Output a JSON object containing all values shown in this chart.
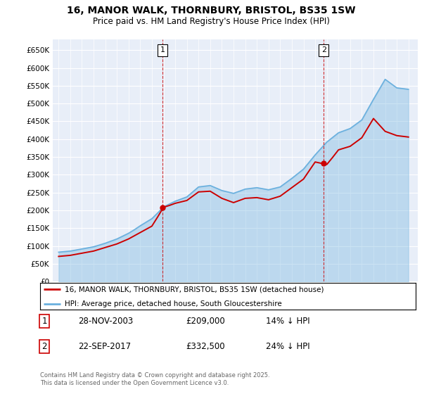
{
  "title": "16, MANOR WALK, THORNBURY, BRISTOL, BS35 1SW",
  "subtitle": "Price paid vs. HM Land Registry's House Price Index (HPI)",
  "hpi_label": "HPI: Average price, detached house, South Gloucestershire",
  "property_label": "16, MANOR WALK, THORNBURY, BRISTOL, BS35 1SW (detached house)",
  "footnote": "Contains HM Land Registry data © Crown copyright and database right 2025.\nThis data is licensed under the Open Government Licence v3.0.",
  "ylim": [
    0,
    680000
  ],
  "yticks": [
    0,
    50000,
    100000,
    150000,
    200000,
    250000,
    300000,
    350000,
    400000,
    450000,
    500000,
    550000,
    600000,
    650000
  ],
  "hpi_color": "#6ab0de",
  "property_color": "#cc0000",
  "purchase1_x": 2003.91,
  "purchase1_y": 209000,
  "purchase2_x": 2017.73,
  "purchase2_y": 332500,
  "purchase1_date": "28-NOV-2003",
  "purchase1_price": "£209,000",
  "purchase1_hpi": "14% ↓ HPI",
  "purchase2_date": "22-SEP-2017",
  "purchase2_price": "£332,500",
  "purchase2_hpi": "24% ↓ HPI",
  "hpi_years": [
    1995,
    1995.5,
    1996,
    1996.5,
    1997,
    1997.5,
    1998,
    1998.5,
    1999,
    1999.5,
    2000,
    2000.5,
    2001,
    2001.5,
    2002,
    2002.5,
    2003,
    2003.5,
    2004,
    2004.5,
    2005,
    2005.5,
    2006,
    2006.5,
    2007,
    2007.5,
    2008,
    2008.5,
    2009,
    2009.5,
    2010,
    2010.5,
    2011,
    2011.5,
    2012,
    2012.5,
    2013,
    2013.5,
    2014,
    2014.5,
    2015,
    2015.5,
    2016,
    2016.5,
    2017,
    2017.5,
    2018,
    2018.5,
    2019,
    2019.5,
    2020,
    2020.5,
    2021,
    2021.5,
    2022,
    2022.5,
    2023,
    2023.5,
    2024,
    2024.5,
    2025
  ],
  "hpi_values": [
    83000,
    84500,
    86000,
    89000,
    92000,
    95000,
    98000,
    103000,
    108000,
    114000,
    120000,
    128000,
    136000,
    146000,
    157000,
    167000,
    177000,
    193000,
    210000,
    218000,
    226000,
    232000,
    238000,
    252000,
    266000,
    268000,
    270000,
    263000,
    256000,
    252000,
    248000,
    254000,
    260000,
    262000,
    264000,
    261000,
    258000,
    262000,
    266000,
    278000,
    290000,
    303000,
    316000,
    336000,
    356000,
    374000,
    392000,
    405000,
    418000,
    424000,
    430000,
    442000,
    454000,
    483000,
    512000,
    540000,
    568000,
    556000,
    544000,
    542000,
    540000
  ],
  "prop_years": [
    1995,
    1995.5,
    1996,
    1996.5,
    1997,
    1997.5,
    1998,
    1998.5,
    1999,
    1999.5,
    2000,
    2000.5,
    2001,
    2001.5,
    2002,
    2002.5,
    2003,
    2003.5,
    2004,
    2004.5,
    2005,
    2005.5,
    2006,
    2006.5,
    2007,
    2007.5,
    2008,
    2008.5,
    2009,
    2009.5,
    2010,
    2010.5,
    2011,
    2011.5,
    2012,
    2012.5,
    2013,
    2013.5,
    2014,
    2014.5,
    2015,
    2015.5,
    2016,
    2016.5,
    2017,
    2017.5,
    2018,
    2018.5,
    2019,
    2019.5,
    2020,
    2020.5,
    2021,
    2021.5,
    2022,
    2022.5,
    2023,
    2023.5,
    2024,
    2024.5,
    2025
  ],
  "prop_values": [
    71000,
    72500,
    74000,
    77000,
    80000,
    83000,
    86000,
    91000,
    96000,
    101000,
    106000,
    113000,
    120000,
    129000,
    138000,
    147000,
    156000,
    182000,
    209000,
    214000,
    220000,
    224000,
    228000,
    240000,
    252000,
    253000,
    254000,
    244000,
    234000,
    228000,
    222000,
    228000,
    234000,
    235000,
    236000,
    233000,
    230000,
    235000,
    240000,
    252000,
    264000,
    276000,
    288000,
    312000,
    336000,
    332500,
    329000,
    349000,
    370000,
    375000,
    380000,
    392000,
    404000,
    431000,
    458000,
    440000,
    422000,
    416000,
    410000,
    408000,
    406000
  ],
  "background_color": "#e8eef8",
  "xlim_left": 1994.5,
  "xlim_right": 2025.8
}
